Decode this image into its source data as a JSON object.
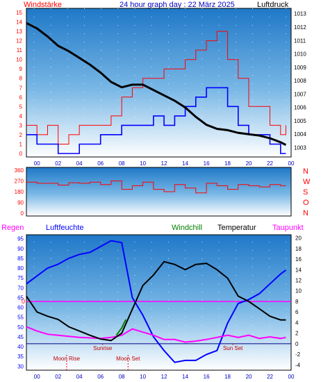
{
  "header": {
    "left_label": "Windstärke",
    "title": "24 hour graph day : 22 März 2025",
    "right_label": "Luftdruck"
  },
  "colors": {
    "plot_bg_top": "#1f78c8",
    "plot_bg_bottom": "#ffffff",
    "red": "#ff0000",
    "blue": "#0000ff",
    "black": "#000000",
    "magenta": "#ff00ff",
    "green": "#008000",
    "title_blue": "#0000c0"
  },
  "x_ticks": [
    "00",
    "02",
    "04",
    "06",
    "08",
    "10",
    "12",
    "14",
    "16",
    "18",
    "20",
    "22",
    "00"
  ],
  "chart_data": [
    {
      "type": "line",
      "name": "wind-pressure",
      "x_unit": "hour",
      "xlim": [
        -1,
        24
      ],
      "left_axis": {
        "label": "Windstärke",
        "ticks": [
          0,
          1,
          2,
          3,
          4,
          5,
          6,
          7,
          8,
          9,
          10,
          11,
          12,
          13,
          14,
          15
        ],
        "ylim": [
          0,
          15
        ]
      },
      "right_axis": {
        "label": "Luftdruck",
        "ticks": [
          1003,
          1004,
          1005,
          1006,
          1007,
          1008,
          1009,
          1010,
          1011,
          1012,
          1013
        ],
        "ylim": [
          1002.3,
          1013.4
        ]
      },
      "pressure": {
        "x": [
          -1,
          0,
          1,
          2,
          3,
          4,
          5,
          6,
          7,
          8,
          9,
          10,
          11,
          12,
          13,
          14,
          15,
          16,
          17,
          18,
          19,
          20,
          21,
          22,
          23,
          23.5
        ],
        "y": [
          1012.3,
          1011.9,
          1011.3,
          1010.6,
          1010.2,
          1009.7,
          1009.2,
          1008.6,
          1007.9,
          1007.5,
          1007.7,
          1007.7,
          1007.3,
          1006.9,
          1006.5,
          1006.0,
          1005.3,
          1004.7,
          1004.4,
          1004.3,
          1004.1,
          1004.0,
          1003.9,
          1003.7,
          1003.4,
          1003.2
        ]
      },
      "gust": {
        "x": [
          -1,
          0,
          1,
          2,
          3,
          4,
          5,
          6,
          7,
          8,
          9,
          10,
          11,
          12,
          13,
          14,
          15,
          16,
          17,
          18,
          19,
          20,
          21,
          22,
          23,
          23.5
        ],
        "y": [
          3,
          2,
          3,
          1,
          2,
          3,
          3,
          3,
          4,
          6,
          7,
          8,
          8,
          9,
          9,
          10,
          11,
          12,
          13,
          10,
          8,
          5,
          5,
          3,
          2,
          3
        ]
      },
      "wind": {
        "x": [
          -1,
          0,
          1,
          2,
          3,
          4,
          5,
          6,
          7,
          8,
          9,
          10,
          11,
          12,
          13,
          14,
          15,
          16,
          17,
          18,
          19,
          20,
          21,
          22,
          23,
          23.5
        ],
        "y": [
          2,
          1,
          1,
          0,
          0,
          1,
          1,
          2,
          2,
          3,
          3,
          3,
          4,
          3,
          4,
          5,
          6,
          7,
          7,
          5,
          3,
          2,
          2,
          1,
          0,
          0
        ]
      }
    },
    {
      "type": "line",
      "name": "wind-direction",
      "x_unit": "hour",
      "xlim": [
        -1,
        24
      ],
      "y_ticks": [
        0,
        90,
        180,
        270,
        360
      ],
      "ylim": [
        0,
        360
      ],
      "compass_labels": [
        "N",
        "W",
        "S",
        "O",
        "N"
      ],
      "direction": {
        "x": [
          -1,
          0,
          1,
          2,
          3,
          4,
          5,
          6,
          7,
          8,
          9,
          10,
          11,
          12,
          13,
          14,
          15,
          16,
          17,
          18,
          19,
          20,
          21,
          22,
          23,
          23.5
        ],
        "y": [
          260,
          250,
          250,
          235,
          255,
          250,
          260,
          240,
          270,
          200,
          230,
          260,
          200,
          180,
          240,
          210,
          170,
          250,
          230,
          200,
          240,
          230,
          220,
          240,
          230,
          230
        ]
      }
    },
    {
      "type": "line",
      "name": "temp-humidity",
      "x_unit": "hour",
      "xlim": [
        -1,
        24
      ],
      "legend": [
        "Regen",
        "Luftfeuchte",
        "Windchill",
        "Temperatur",
        "Taupunkt"
      ],
      "left_axis": {
        "ticks": [
          30,
          35,
          40,
          45,
          50,
          55,
          60,
          65,
          70,
          75,
          80,
          85,
          90,
          95
        ],
        "ylim": [
          28,
          97
        ]
      },
      "right_axis": {
        "ticks": [
          -4,
          -2,
          0,
          2,
          4,
          6,
          8,
          10,
          12,
          14,
          16,
          18,
          20
        ],
        "ylim": [
          -5,
          20.6
        ]
      },
      "rain_marker": "0",
      "humidity": {
        "x": [
          -1,
          0,
          1,
          2,
          3,
          4,
          5,
          6,
          7,
          8,
          9,
          10,
          11,
          12,
          13,
          14,
          15,
          16,
          17,
          18,
          19,
          20,
          21,
          22,
          23,
          23.5
        ],
        "y": [
          72,
          76,
          80,
          82,
          85,
          87,
          88,
          91,
          94,
          93,
          65,
          56,
          45,
          38,
          32,
          33,
          33,
          36,
          38,
          52,
          62,
          64,
          67,
          72,
          77,
          79
        ]
      },
      "temperature": {
        "x": [
          -1,
          0,
          1,
          2,
          3,
          4,
          5,
          6,
          7,
          8,
          9,
          10,
          11,
          12,
          13,
          14,
          15,
          16,
          17,
          18,
          19,
          20,
          21,
          22,
          23,
          23.5
        ],
        "y": [
          9,
          6,
          5.2,
          4.6,
          3.2,
          2.4,
          1.6,
          0.9,
          0.6,
          2.0,
          6.5,
          11,
          13,
          15.5,
          15,
          14,
          15,
          15.2,
          14,
          12.4,
          9,
          8,
          6.6,
          5.2,
          4.5,
          4.5
        ]
      },
      "windchill": {
        "x": [
          7.5,
          8,
          8.4
        ],
        "y": [
          1.6,
          3.0,
          4.6
        ]
      },
      "dewpoint": {
        "x": [
          -1,
          0,
          1,
          2,
          3,
          4,
          5,
          6,
          7,
          8,
          9,
          10,
          11,
          12,
          13,
          14,
          15,
          16,
          17,
          18,
          19,
          20,
          21,
          22,
          23,
          23.5
        ],
        "y": [
          3.2,
          2.4,
          1.8,
          1.6,
          1.4,
          1.2,
          1.1,
          1.0,
          1.2,
          1.6,
          2.8,
          2.2,
          1.6,
          0.8,
          0.8,
          0.3,
          0.5,
          0.8,
          1.2,
          1.6,
          1.2,
          1.6,
          1.0,
          1.3,
          1.0,
          1.2
        ]
      },
      "events": [
        {
          "label": "Sunrise",
          "x": 6.2
        },
        {
          "label": "Sun Set",
          "x": 18.5
        },
        {
          "label": "Moon Rise",
          "x": 2.8
        },
        {
          "label": "Moon Set",
          "x": 8.6
        }
      ]
    }
  ]
}
